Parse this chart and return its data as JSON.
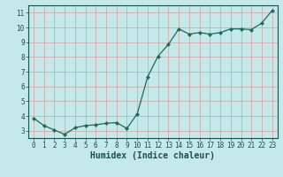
{
  "x": [
    0,
    1,
    2,
    3,
    4,
    5,
    6,
    7,
    8,
    9,
    10,
    11,
    12,
    13,
    14,
    15,
    16,
    17,
    18,
    19,
    20,
    21,
    22,
    23
  ],
  "y": [
    3.85,
    3.35,
    3.05,
    2.75,
    3.2,
    3.35,
    3.4,
    3.5,
    3.55,
    3.15,
    4.15,
    6.65,
    8.05,
    8.85,
    9.9,
    9.55,
    9.65,
    9.55,
    9.65,
    9.9,
    9.9,
    9.85,
    10.3,
    11.15
  ],
  "line_color": "#1a6b5a",
  "marker": "D",
  "marker_size": 2.2,
  "bg_color": "#c5e8e8",
  "grid_color": "#d4a0a0",
  "xlabel": "Humidex (Indice chaleur)",
  "xlim": [
    -0.5,
    23.5
  ],
  "ylim": [
    2.5,
    11.5
  ],
  "xticks": [
    0,
    1,
    2,
    3,
    4,
    5,
    6,
    7,
    8,
    9,
    10,
    11,
    12,
    13,
    14,
    15,
    16,
    17,
    18,
    19,
    20,
    21,
    22,
    23
  ],
  "yticks": [
    3,
    4,
    5,
    6,
    7,
    8,
    9,
    10,
    11
  ],
  "font_color": "#1a5050",
  "tick_fontsize": 5.5,
  "label_fontsize": 7.0,
  "axis_color": "#1a5050",
  "linewidth": 0.9
}
